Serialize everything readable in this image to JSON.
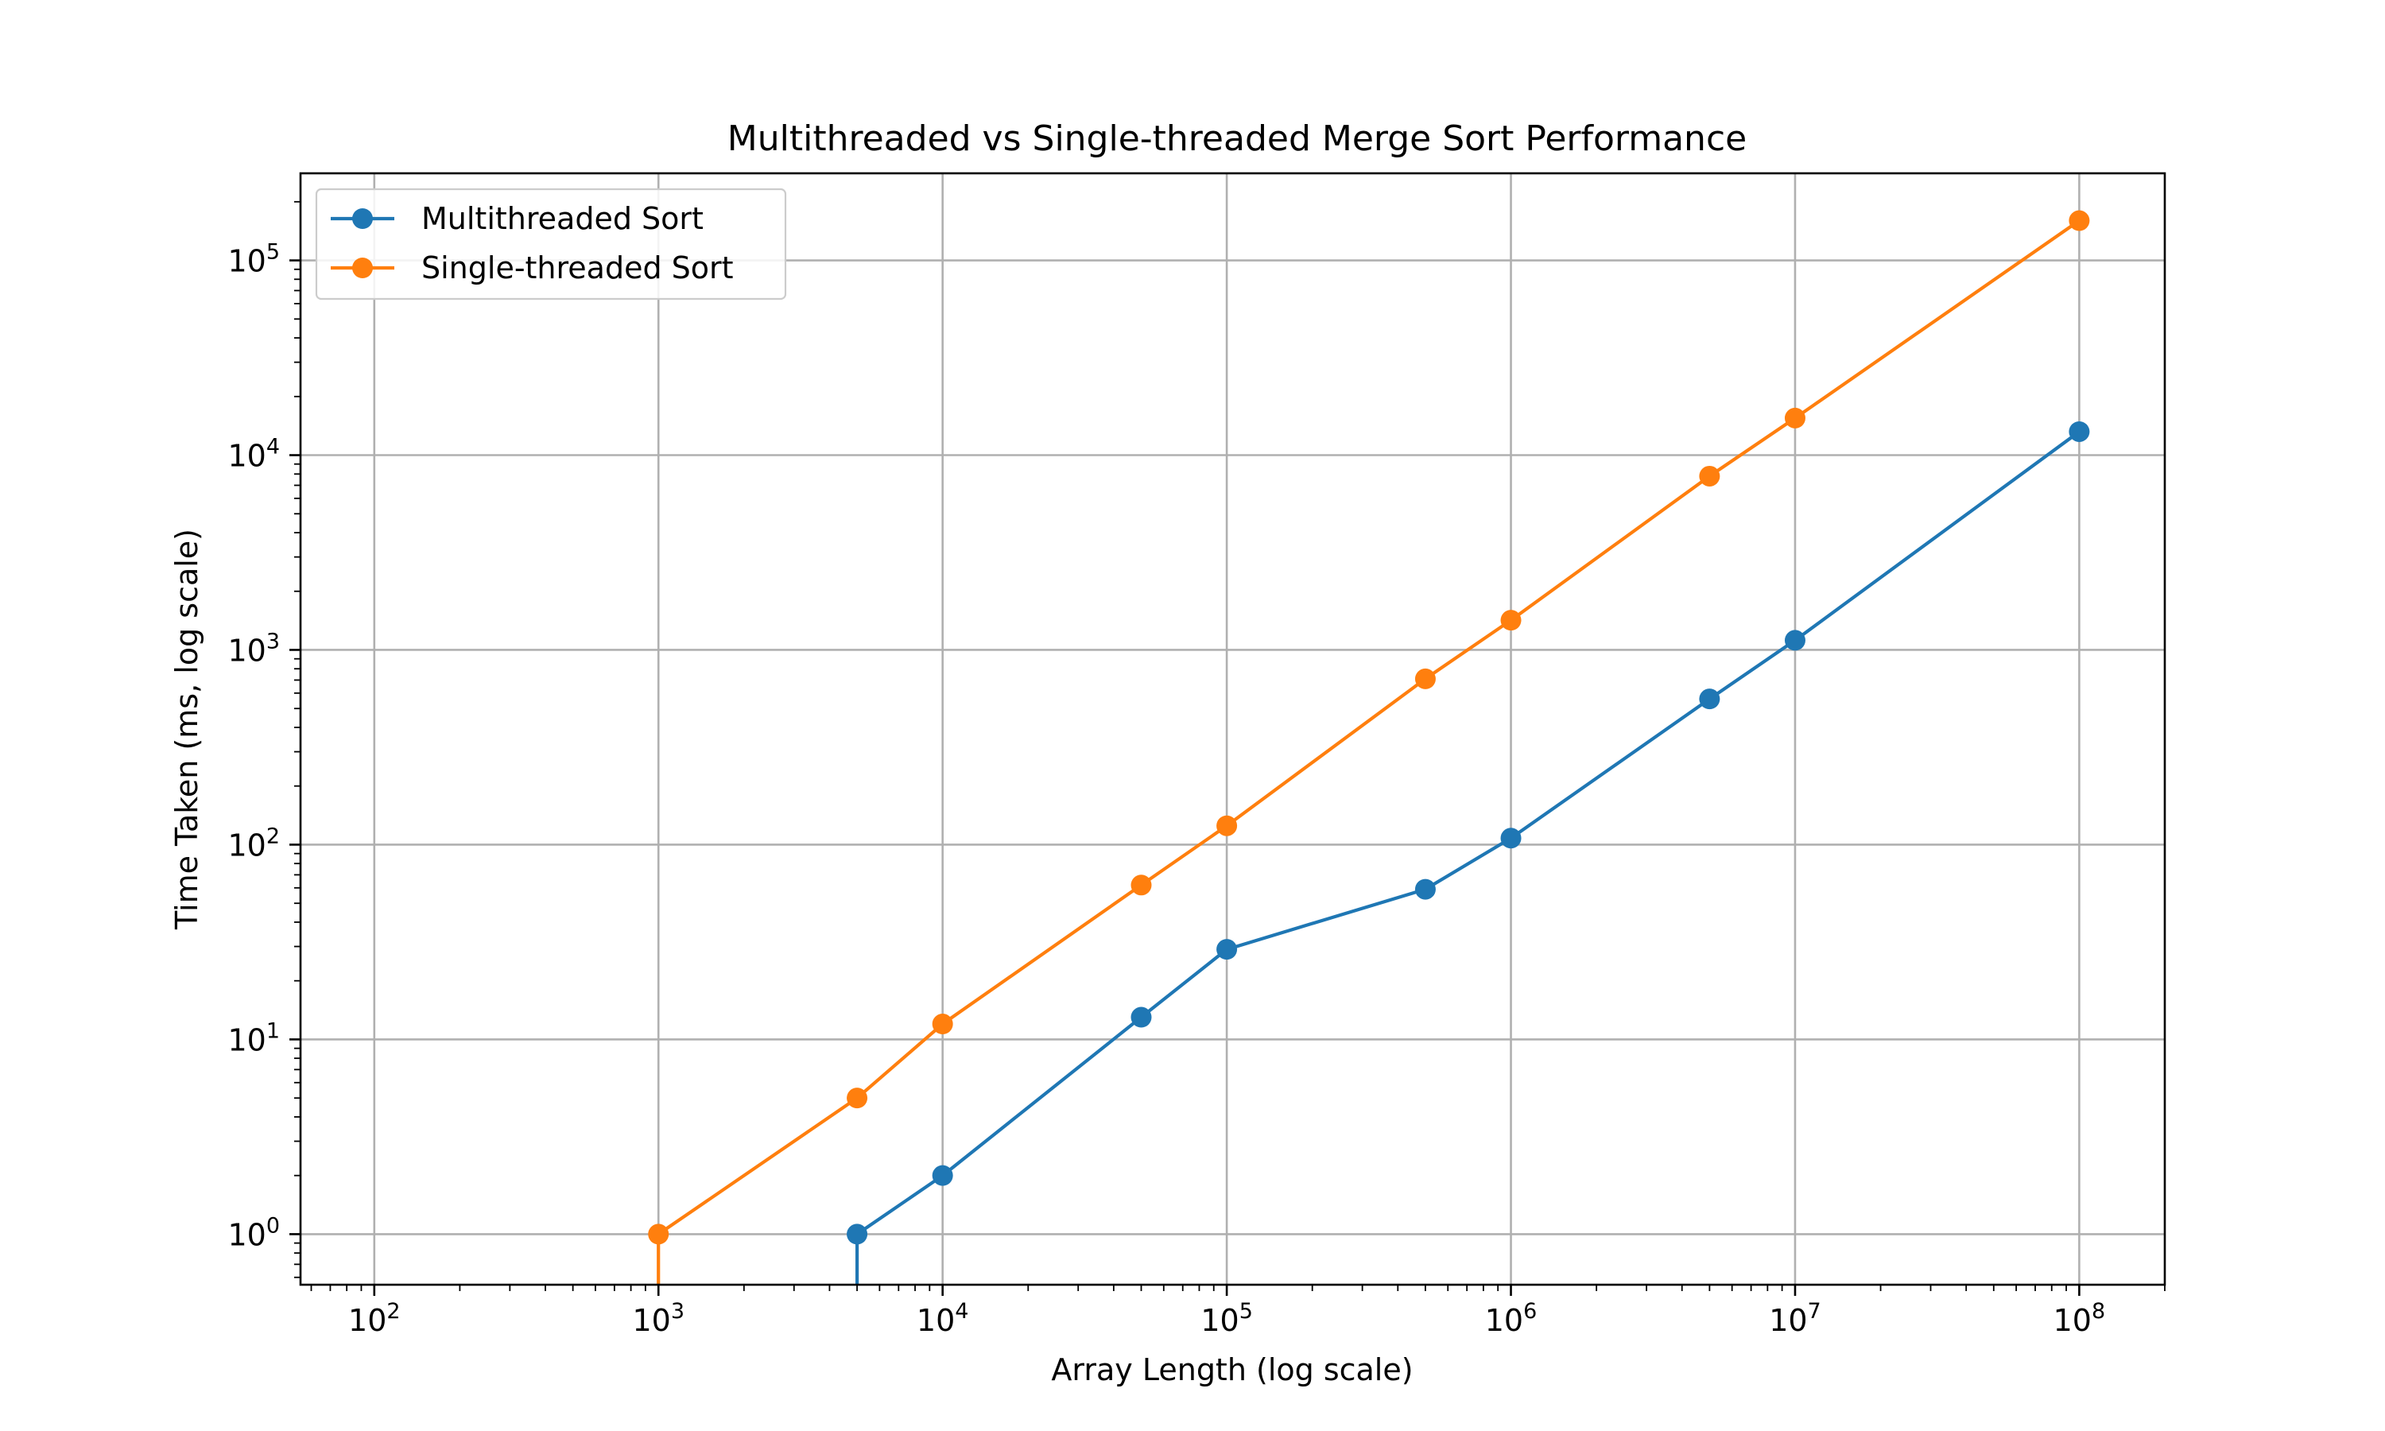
{
  "chart_data": {
    "type": "line",
    "title": "Multithreaded vs Single-threaded Merge Sort Performance",
    "xlabel": "Array Length (log scale)",
    "ylabel": "Time Taken (ms, log scale)",
    "xscale": "log",
    "yscale": "log",
    "xlim": [
      55,
      200000000
    ],
    "ylim": [
      0.55,
      280000
    ],
    "x_ticks": [
      {
        "base": "10",
        "exp": "2",
        "value": 100
      },
      {
        "base": "10",
        "exp": "3",
        "value": 1000
      },
      {
        "base": "10",
        "exp": "4",
        "value": 10000
      },
      {
        "base": "10",
        "exp": "5",
        "value": 100000
      },
      {
        "base": "10",
        "exp": "6",
        "value": 1000000
      },
      {
        "base": "10",
        "exp": "7",
        "value": 10000000
      },
      {
        "base": "10",
        "exp": "8",
        "value": 100000000
      }
    ],
    "y_ticks": [
      {
        "base": "10",
        "exp": "0",
        "value": 1
      },
      {
        "base": "10",
        "exp": "1",
        "value": 10
      },
      {
        "base": "10",
        "exp": "2",
        "value": 100
      },
      {
        "base": "10",
        "exp": "3",
        "value": 1000
      },
      {
        "base": "10",
        "exp": "4",
        "value": 10000
      },
      {
        "base": "10",
        "exp": "5",
        "value": 100000
      }
    ],
    "grid": true,
    "legend_position": "top-left",
    "series": [
      {
        "name": "Multithreaded Sort",
        "color": "#1f77b4",
        "x": [
          100,
          1000,
          5000,
          10000,
          50000,
          100000,
          500000,
          1000000,
          5000000,
          10000000,
          100000000
        ],
        "y": [
          0,
          0,
          1,
          2,
          13,
          29,
          59,
          108,
          560,
          1120,
          13200
        ]
      },
      {
        "name": "Single-threaded Sort",
        "color": "#ff7f0e",
        "x": [
          100,
          1000,
          5000,
          10000,
          50000,
          100000,
          500000,
          1000000,
          5000000,
          10000000,
          100000000
        ],
        "y": [
          0,
          1,
          5,
          12,
          62,
          125,
          710,
          1420,
          7800,
          15500,
          160000
        ]
      }
    ]
  }
}
